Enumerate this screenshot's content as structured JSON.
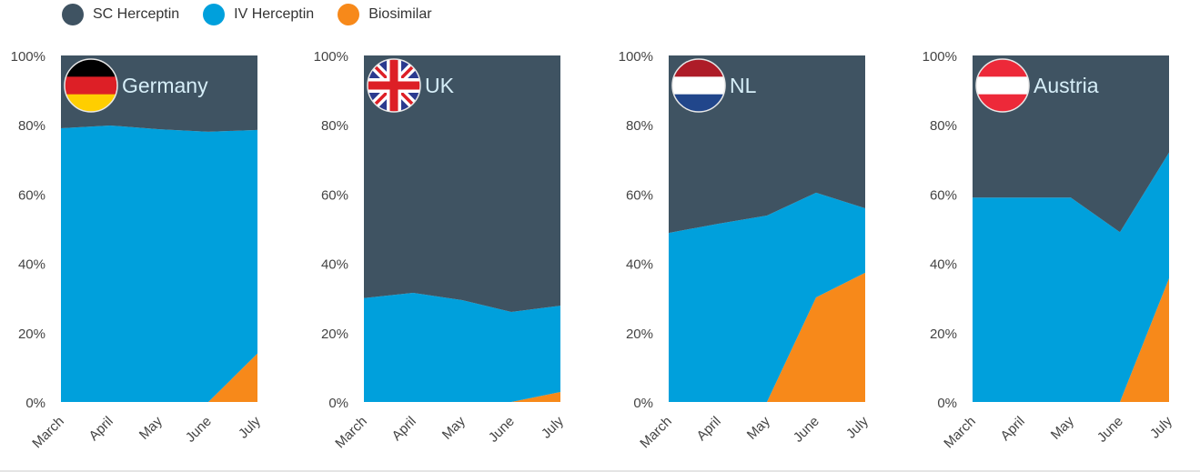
{
  "chart_data": {
    "type": "area",
    "stacked": true,
    "legend": {
      "placement": "top-left",
      "entries": [
        "SC Herceptin",
        "IV Herceptin",
        "Biosimilar"
      ]
    },
    "colors": {
      "SC Herceptin": "#3f5362",
      "IV Herceptin": "#00a0dc",
      "Biosimilar": "#f7891a"
    },
    "categories": [
      "March",
      "April",
      "May",
      "June",
      "July"
    ],
    "ylim": [
      0,
      100
    ],
    "yticks": [
      "0%",
      "20%",
      "40%",
      "60%",
      "80%",
      "100%"
    ],
    "panels": [
      {
        "title": "Germany",
        "flag": "germany",
        "series": [
          {
            "name": "Biosimilar",
            "values": [
              0,
              0,
              0,
              0,
              14
            ]
          },
          {
            "name": "IV Herceptin",
            "values": [
              79,
              79.8,
              78.7,
              78,
              64.5
            ]
          },
          {
            "name": "SC Herceptin",
            "values": [
              21,
              20.2,
              21.3,
              22,
              21.5
            ]
          }
        ]
      },
      {
        "title": "UK",
        "flag": "uk",
        "series": [
          {
            "name": "Biosimilar",
            "values": [
              0,
              0,
              0,
              0,
              2.9
            ]
          },
          {
            "name": "IV Herceptin",
            "values": [
              30,
              31.5,
              29.4,
              26,
              24.9
            ]
          },
          {
            "name": "SC Herceptin",
            "values": [
              70,
              68.5,
              70.6,
              74,
              72.2
            ]
          }
        ]
      },
      {
        "title": "NL",
        "flag": "netherlands",
        "series": [
          {
            "name": "Biosimilar",
            "values": [
              0,
              0,
              0,
              30.2,
              37.3
            ]
          },
          {
            "name": "IV Herceptin",
            "values": [
              48.8,
              51.4,
              53.8,
              30.2,
              18.6
            ]
          },
          {
            "name": "SC Herceptin",
            "values": [
              51.2,
              48.6,
              46.2,
              39.6,
              44.1
            ]
          }
        ]
      },
      {
        "title": "Austria",
        "flag": "austria",
        "series": [
          {
            "name": "Biosimilar",
            "values": [
              0,
              0,
              0,
              0,
              35.7
            ]
          },
          {
            "name": "IV Herceptin",
            "values": [
              59,
              59,
              59,
              49,
              36.3
            ]
          },
          {
            "name": "SC Herceptin",
            "values": [
              41,
              41,
              41,
              51,
              28
            ]
          }
        ]
      }
    ]
  }
}
